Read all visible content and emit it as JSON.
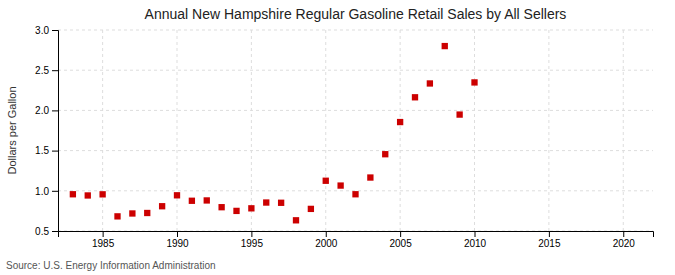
{
  "chart_data": {
    "type": "scatter",
    "title": "Annual New Hampshire Regular Gasoline Retail Sales by All Sellers",
    "y_label": "Dollars per Gallon",
    "source": "Source: U.S. Energy Information Administration",
    "x": [
      1983,
      1984,
      1985,
      1986,
      1987,
      1988,
      1989,
      1990,
      1991,
      1992,
      1993,
      1994,
      1995,
      1996,
      1997,
      1998,
      1999,
      2000,
      2001,
      2002,
      2003,
      2004,
      2005,
      2006,
      2007,
      2008,
      2009,
      2010
    ],
    "values": [
      0.957,
      0.942,
      0.956,
      0.682,
      0.718,
      0.724,
      0.808,
      0.944,
      0.876,
      0.88,
      0.796,
      0.75,
      0.782,
      0.854,
      0.851,
      0.633,
      0.775,
      1.125,
      1.065,
      0.957,
      1.165,
      1.455,
      1.855,
      2.163,
      2.335,
      2.8,
      1.948,
      2.348
    ],
    "color": "#cc0000",
    "marker": "square",
    "xlim": [
      1982,
      2022
    ],
    "ylim": [
      0.5,
      3.0
    ],
    "xticks": [
      1985,
      1990,
      1995,
      2000,
      2005,
      2010,
      2015,
      2020
    ],
    "yticks": [
      0.5,
      {
        "value": 1.0,
        "label": "1.0"
      },
      1.5,
      {
        "value": 2.0,
        "label": "2.0"
      },
      2.5,
      {
        "value": 3.0,
        "label": "3.0"
      }
    ],
    "grid": true
  }
}
